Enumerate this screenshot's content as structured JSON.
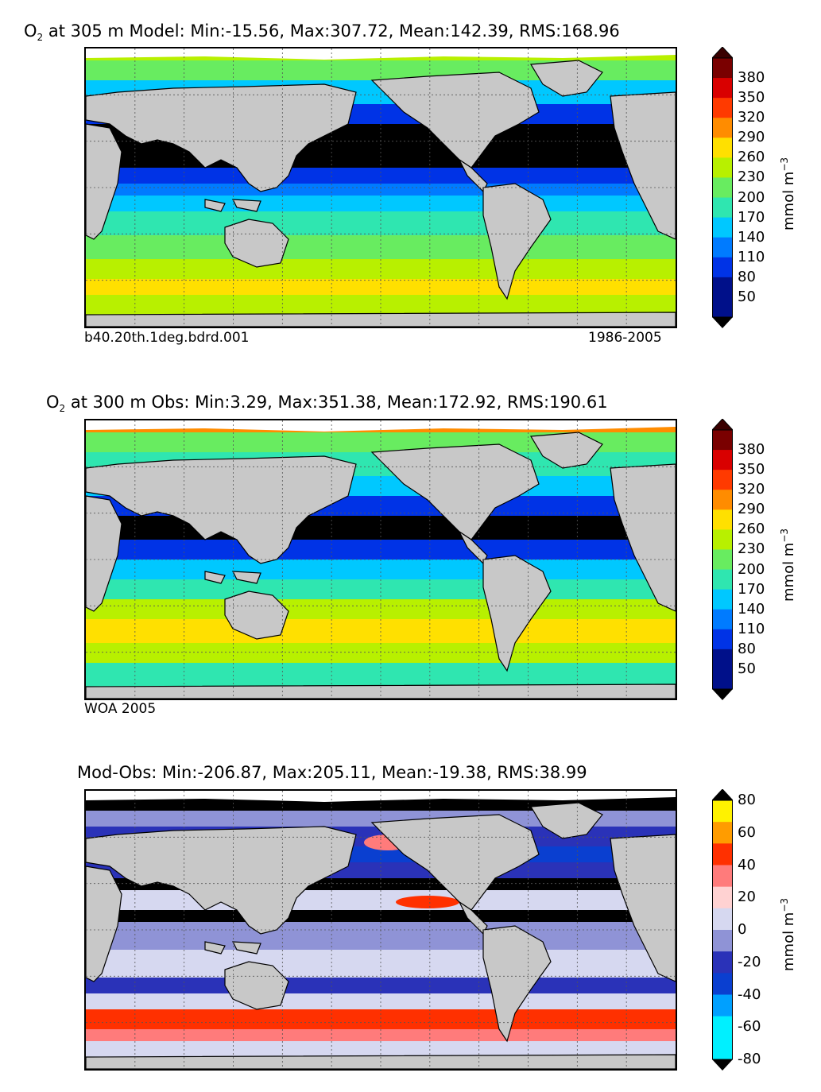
{
  "chart_data": [
    {
      "type": "heatmap",
      "title_prefix": "O",
      "title_sub": "2",
      "title": " at 305 m Model: Min:-15.56, Max:307.72, Mean:142.39, RMS:168.96",
      "footer_left": "b40.20th.1deg.bdrd.001",
      "footer_right": "1986-2005",
      "colorbar_label": "mmol m",
      "colorbar_exp": "−3",
      "colorbar_ticks": [
        "380",
        "350",
        "320",
        "290",
        "260",
        "230",
        "200",
        "170",
        "140",
        "110",
        "80",
        "50"
      ],
      "colorbar_colors": [
        "#7a0000",
        "#d90000",
        "#ff3a00",
        "#ff8c00",
        "#ffe000",
        "#b8f000",
        "#68ec60",
        "#2fe6b0",
        "#00c8ff",
        "#007bff",
        "#0033e6",
        "#00108a"
      ],
      "stats": {
        "min": -15.56,
        "max": 307.72,
        "mean": 142.39,
        "rms": 168.96
      },
      "depth_m": 305
    },
    {
      "type": "heatmap",
      "title_prefix": "O",
      "title_sub": "2",
      "title": " at 300 m Obs: Min:3.29, Max:351.38, Mean:172.92, RMS:190.61",
      "footer_left": "WOA 2005",
      "footer_right": "",
      "colorbar_label": "mmol m",
      "colorbar_exp": "−3",
      "colorbar_ticks": [
        "380",
        "350",
        "320",
        "290",
        "260",
        "230",
        "200",
        "170",
        "140",
        "110",
        "80",
        "50"
      ],
      "colorbar_colors": [
        "#7a0000",
        "#d90000",
        "#ff3a00",
        "#ff8c00",
        "#ffe000",
        "#b8f000",
        "#68ec60",
        "#2fe6b0",
        "#00c8ff",
        "#007bff",
        "#0033e6",
        "#00108a"
      ],
      "stats": {
        "min": 3.29,
        "max": 351.38,
        "mean": 172.92,
        "rms": 190.61
      },
      "depth_m": 300
    },
    {
      "type": "heatmap",
      "title_prefix": "",
      "title_sub": "",
      "title": "Mod-Obs: Min:-206.87, Max:205.11, Mean:-19.38, RMS:38.99",
      "footer_left": "",
      "footer_right": "",
      "colorbar_label": "mmol m",
      "colorbar_exp": "−3",
      "colorbar_ticks": [
        "80",
        "60",
        "40",
        "20",
        "0",
        "-20",
        "-40",
        "-60",
        "-80"
      ],
      "colorbar_colors": [
        "#fff200",
        "#ff9c00",
        "#ff3000",
        "#ff7b7b",
        "#ffd2d2",
        "#d6d8f0",
        "#8f93d6",
        "#2a32b8",
        "#0a3fd0",
        "#00a0ff",
        "#00f0ff"
      ],
      "stats": {
        "min": -206.87,
        "max": 205.11,
        "mean": -19.38,
        "rms": 38.99
      }
    }
  ]
}
